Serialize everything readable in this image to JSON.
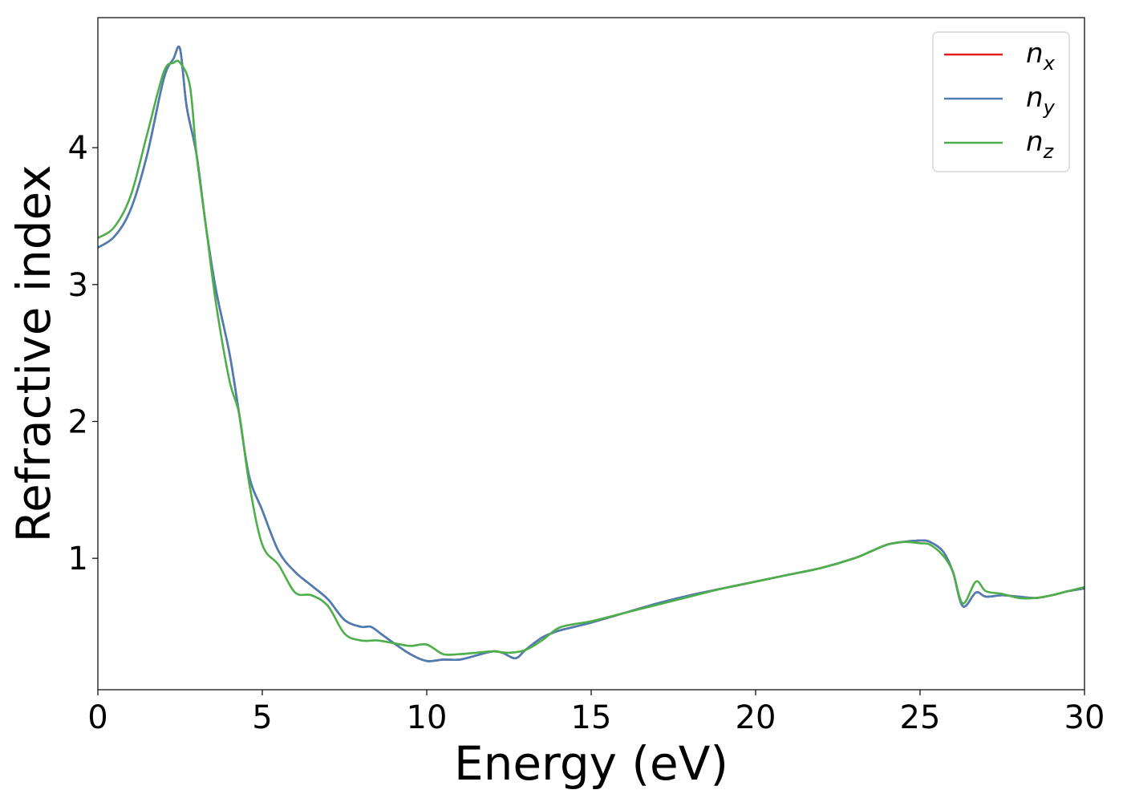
{
  "chart_data": {
    "type": "line",
    "title": "",
    "xlabel": "Energy (eV)",
    "ylabel": "Refractive index",
    "xlim": [
      0,
      30
    ],
    "ylim": [
      0.04,
      4.95
    ],
    "xticks": [
      0,
      5,
      10,
      15,
      20,
      25,
      30
    ],
    "yticks": [
      1,
      2,
      3,
      4
    ],
    "grid": false,
    "legend_position": "top-right",
    "series": [
      {
        "name": "n_x",
        "label_base": "n",
        "label_sub": "x",
        "color": "#e41a1c",
        "x": [
          0,
          0.5,
          1.0,
          1.5,
          2.0,
          2.3,
          2.5,
          2.7,
          3.0,
          3.3,
          3.6,
          4.0,
          4.3,
          4.6,
          5.0,
          5.5,
          6.0,
          6.5,
          7.0,
          7.5,
          8.0,
          8.3,
          8.6,
          9.0,
          9.5,
          10.0,
          10.5,
          11.0,
          11.5,
          12.0,
          12.3,
          12.7,
          13.0,
          13.5,
          14.0,
          14.5,
          15.0,
          16.0,
          17.0,
          18.0,
          19.0,
          20.0,
          21.0,
          22.0,
          23.0,
          23.5,
          24.0,
          24.5,
          25.0,
          25.3,
          25.7,
          26.0,
          26.3,
          26.7,
          27.0,
          27.5,
          28.0,
          28.5,
          29.0,
          29.5,
          30.0
        ],
        "y": [
          3.27,
          3.35,
          3.55,
          3.95,
          4.5,
          4.65,
          4.72,
          4.3,
          3.95,
          3.4,
          2.95,
          2.5,
          2.05,
          1.6,
          1.35,
          1.05,
          0.9,
          0.8,
          0.7,
          0.55,
          0.5,
          0.5,
          0.45,
          0.38,
          0.3,
          0.25,
          0.26,
          0.26,
          0.29,
          0.32,
          0.31,
          0.27,
          0.33,
          0.42,
          0.47,
          0.5,
          0.53,
          0.6,
          0.67,
          0.73,
          0.78,
          0.83,
          0.88,
          0.93,
          1.0,
          1.05,
          1.1,
          1.12,
          1.13,
          1.12,
          1.05,
          0.9,
          0.65,
          0.75,
          0.72,
          0.73,
          0.72,
          0.71,
          0.73,
          0.76,
          0.78
        ]
      },
      {
        "name": "n_y",
        "label_base": "n",
        "label_sub": "y",
        "color": "#4a7eb5",
        "x": [
          0,
          0.5,
          1.0,
          1.5,
          2.0,
          2.3,
          2.5,
          2.7,
          3.0,
          3.3,
          3.6,
          4.0,
          4.3,
          4.6,
          5.0,
          5.5,
          6.0,
          6.5,
          7.0,
          7.5,
          8.0,
          8.3,
          8.6,
          9.0,
          9.5,
          10.0,
          10.5,
          11.0,
          11.5,
          12.0,
          12.3,
          12.7,
          13.0,
          13.5,
          14.0,
          14.5,
          15.0,
          16.0,
          17.0,
          18.0,
          19.0,
          20.0,
          21.0,
          22.0,
          23.0,
          23.5,
          24.0,
          24.5,
          25.0,
          25.3,
          25.7,
          26.0,
          26.3,
          26.7,
          27.0,
          27.5,
          28.0,
          28.5,
          29.0,
          29.5,
          30.0
        ],
        "y": [
          3.27,
          3.35,
          3.55,
          3.95,
          4.5,
          4.65,
          4.72,
          4.3,
          3.95,
          3.4,
          2.95,
          2.5,
          2.05,
          1.6,
          1.35,
          1.05,
          0.9,
          0.8,
          0.7,
          0.55,
          0.5,
          0.5,
          0.45,
          0.38,
          0.3,
          0.25,
          0.26,
          0.26,
          0.29,
          0.32,
          0.31,
          0.27,
          0.33,
          0.42,
          0.47,
          0.5,
          0.53,
          0.6,
          0.67,
          0.73,
          0.78,
          0.83,
          0.88,
          0.93,
          1.0,
          1.05,
          1.1,
          1.12,
          1.13,
          1.12,
          1.05,
          0.9,
          0.65,
          0.75,
          0.72,
          0.73,
          0.72,
          0.71,
          0.73,
          0.76,
          0.78
        ]
      },
      {
        "name": "n_z",
        "label_base": "n",
        "label_sub": "z",
        "color": "#4daf4a",
        "x": [
          0,
          0.5,
          1.0,
          1.5,
          2.0,
          2.3,
          2.5,
          2.8,
          3.0,
          3.3,
          3.6,
          4.0,
          4.3,
          4.6,
          5.0,
          5.5,
          6.0,
          6.5,
          7.0,
          7.5,
          8.0,
          8.5,
          9.0,
          9.5,
          10.0,
          10.5,
          11.0,
          11.5,
          12.0,
          12.5,
          13.0,
          13.5,
          14.0,
          14.5,
          15.0,
          16.0,
          17.0,
          18.0,
          19.0,
          20.0,
          21.0,
          22.0,
          23.0,
          23.5,
          24.0,
          24.5,
          25.0,
          25.3,
          25.7,
          26.0,
          26.3,
          26.7,
          27.0,
          27.5,
          28.0,
          28.5,
          29.0,
          29.5,
          30.0
        ],
        "y": [
          3.34,
          3.42,
          3.65,
          4.1,
          4.55,
          4.62,
          4.62,
          4.45,
          3.95,
          3.4,
          2.85,
          2.3,
          2.05,
          1.55,
          1.1,
          0.95,
          0.75,
          0.73,
          0.65,
          0.45,
          0.4,
          0.4,
          0.38,
          0.36,
          0.37,
          0.3,
          0.3,
          0.31,
          0.32,
          0.31,
          0.33,
          0.4,
          0.49,
          0.52,
          0.54,
          0.6,
          0.66,
          0.72,
          0.78,
          0.83,
          0.88,
          0.93,
          1.0,
          1.05,
          1.1,
          1.12,
          1.11,
          1.1,
          1.02,
          0.9,
          0.67,
          0.83,
          0.76,
          0.74,
          0.71,
          0.71,
          0.73,
          0.76,
          0.79
        ]
      }
    ]
  }
}
